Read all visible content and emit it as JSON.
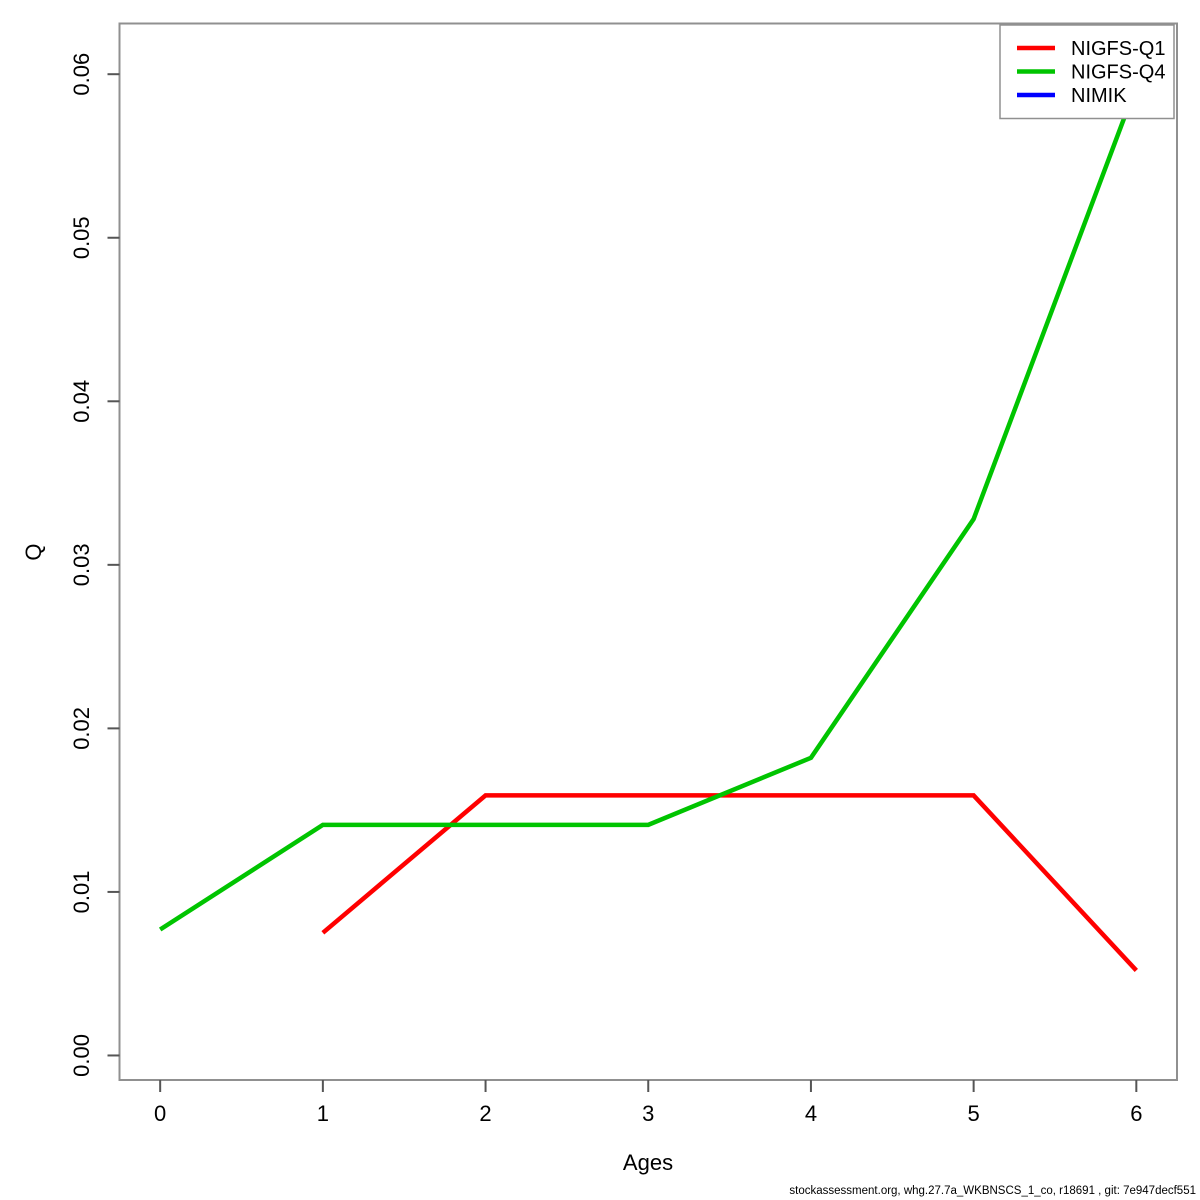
{
  "chart_data": {
    "type": "line",
    "title": "",
    "xlabel": "Ages",
    "ylabel": "Q",
    "x_ticks": [
      0,
      1,
      2,
      3,
      4,
      5,
      6
    ],
    "y_tick_labels": [
      "0.00",
      "0.01",
      "0.02",
      "0.03",
      "0.04",
      "0.05",
      "0.06"
    ],
    "xlim": [
      -0.25,
      6.25
    ],
    "ylim": [
      -0.0015,
      0.0631
    ],
    "grid": false,
    "legend_position": "top-right",
    "series": [
      {
        "name": "NIGFS-Q1",
        "color": "#ff0000",
        "x": [
          1,
          2,
          3,
          4,
          5,
          6
        ],
        "y": [
          0.0075,
          0.0159,
          0.0159,
          0.0159,
          0.0159,
          0.0052
        ]
      },
      {
        "name": "NIGFS-Q4",
        "color": "#00c400",
        "x": [
          0,
          1,
          2,
          3,
          4,
          5,
          6
        ],
        "y": [
          0.0077,
          0.0141,
          0.0141,
          0.0141,
          0.0182,
          0.0328,
          0.0593
        ]
      },
      {
        "name": "NIMIK",
        "color": "#0000ff",
        "x": [],
        "y": []
      }
    ],
    "footer": "stockassessment.org, whg.27.7a_WKBNSCS_1_co, r18691 , git: 7e947decf551"
  },
  "colors": {
    "box_border": "#909090",
    "tick": "#555555",
    "legend_border": "#909090",
    "background": "#ffffff"
  }
}
